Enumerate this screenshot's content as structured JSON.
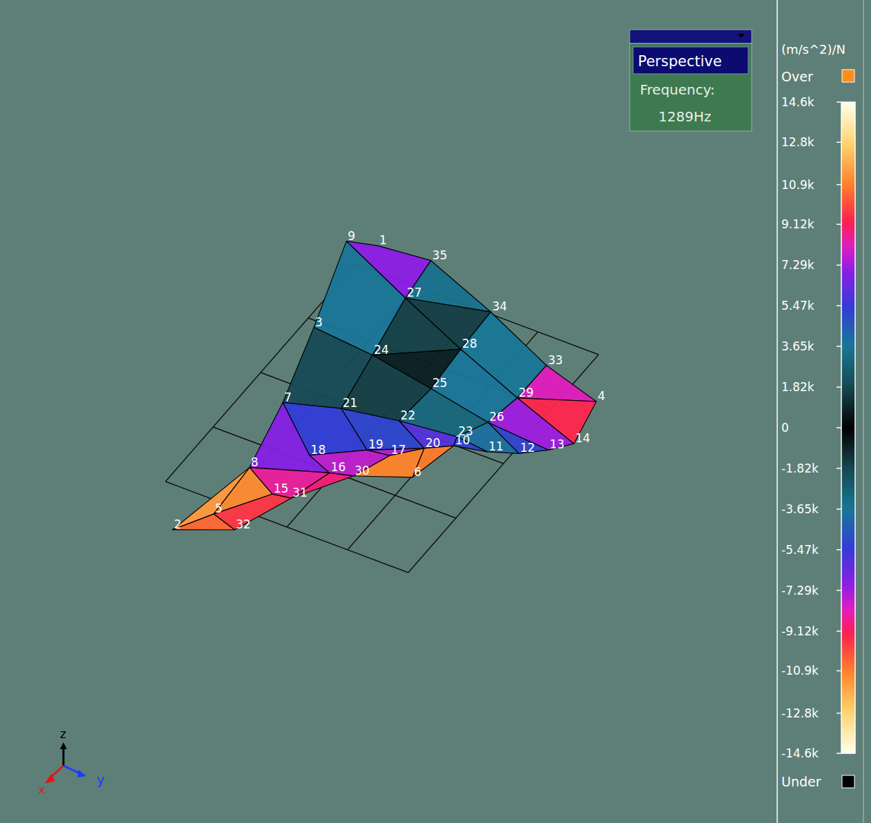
{
  "chart_data": {
    "type": "surface",
    "view_label": "Perspective",
    "frequency_label": "Frequency:",
    "frequency": "1289Hz",
    "unit": "(m/s^2)/N",
    "over_label": "Over",
    "under_label": "Under",
    "axis_labels": {
      "x": "x",
      "y": "y",
      "z": "z"
    },
    "grid": true,
    "tick_labels": false,
    "floor": {
      "x": [
        0,
        1,
        2,
        3,
        4
      ],
      "y": [
        0,
        1,
        2,
        3,
        4
      ]
    },
    "nodes": [
      {
        "label": "9",
        "x": -0.36,
        "y": 4.26,
        "value": -11500
      },
      {
        "label": "1",
        "x": 0.08,
        "y": 4.36,
        "value": -6000
      },
      {
        "label": "35",
        "x": 0.9,
        "y": 4.43,
        "value": -6500
      },
      {
        "label": "27",
        "x": 0.99,
        "y": 3.78,
        "value": -4000
      },
      {
        "label": "34",
        "x": 2.2,
        "y": 4.03,
        "value": 300
      },
      {
        "label": "3",
        "x": 0.17,
        "y": 2.9,
        "value": 500
      },
      {
        "label": "24",
        "x": 1.2,
        "y": 2.82,
        "value": 200
      },
      {
        "label": "28",
        "x": 2.23,
        "y": 3.36,
        "value": -1000
      },
      {
        "label": "33",
        "x": 3.47,
        "y": 3.58,
        "value": -6500
      },
      {
        "label": "25",
        "x": 2.29,
        "y": 2.66,
        "value": -1500
      },
      {
        "label": "29",
        "x": 3.46,
        "y": 2.98,
        "value": -7500
      },
      {
        "label": "4",
        "x": 4.48,
        "y": 3.34,
        "value": -10500
      },
      {
        "label": "7",
        "x": 0.6,
        "y": 1.7,
        "value": -5500
      },
      {
        "label": "21",
        "x": 1.39,
        "y": 1.92,
        "value": -3000
      },
      {
        "label": "22",
        "x": 2.24,
        "y": 2.05,
        "value": -2000
      },
      {
        "label": "26",
        "x": 3.36,
        "y": 2.49,
        "value": -5000
      },
      {
        "label": "23",
        "x": 3.13,
        "y": 2.13,
        "value": -3500
      },
      {
        "label": "14",
        "x": 4.66,
        "y": 2.64,
        "value": -10000
      },
      {
        "label": "13",
        "x": 4.41,
        "y": 2.42,
        "value": -6500
      },
      {
        "label": "12",
        "x": 4.08,
        "y": 2.22,
        "value": -4000
      },
      {
        "label": "11",
        "x": 3.67,
        "y": 2.08,
        "value": -3000
      },
      {
        "label": "10",
        "x": 3.19,
        "y": 1.99,
        "value": -9000
      },
      {
        "label": "20",
        "x": 2.85,
        "y": 1.8,
        "value": -9500
      },
      {
        "label": "18",
        "x": 1.5,
        "y": 1.11,
        "value": -7000
      },
      {
        "label": "19",
        "x": 2.16,
        "y": 1.48,
        "value": -6000
      },
      {
        "label": "17",
        "x": 2.5,
        "y": 1.52,
        "value": -7000
      },
      {
        "label": "16",
        "x": 1.94,
        "y": 0.97,
        "value": -5000
      },
      {
        "label": "30",
        "x": 2.27,
        "y": 1.05,
        "value": -13500
      },
      {
        "label": "6",
        "x": 3.02,
        "y": 1.34,
        "value": -14000
      },
      {
        "label": "8",
        "x": 0.89,
        "y": 0.63,
        "value": -10000
      },
      {
        "label": "15",
        "x": 1.46,
        "y": 0.38,
        "value": -11000
      },
      {
        "label": "31",
        "x": 1.74,
        "y": 0.42,
        "value": -8000
      },
      {
        "label": "2",
        "x": 0.61,
        "y": -0.63,
        "value": -12000
      },
      {
        "label": "5",
        "x": 0.95,
        "y": -0.2,
        "value": -12500
      },
      {
        "label": "32",
        "x": 1.38,
        "y": -0.31,
        "value": -7000
      }
    ],
    "faces": [
      [
        "9",
        "1",
        "35",
        "27"
      ],
      [
        "27",
        "35",
        "34"
      ],
      [
        "27",
        "34",
        "28"
      ],
      [
        "9",
        "27",
        "24",
        "3"
      ],
      [
        "24",
        "27",
        "28"
      ],
      [
        "28",
        "34",
        "33",
        "29"
      ],
      [
        "29",
        "33",
        "4"
      ],
      [
        "29",
        "4",
        "14"
      ],
      [
        "3",
        "24",
        "21",
        "7"
      ],
      [
        "24",
        "28",
        "25"
      ],
      [
        "24",
        "25",
        "22",
        "21"
      ],
      [
        "28",
        "29",
        "26",
        "25"
      ],
      [
        "29",
        "14",
        "13",
        "26"
      ],
      [
        "26",
        "13",
        "12"
      ],
      [
        "26",
        "12",
        "11",
        "23"
      ],
      [
        "25",
        "26",
        "23",
        "22"
      ],
      [
        "22",
        "23",
        "10",
        "20"
      ],
      [
        "23",
        "11",
        "10"
      ],
      [
        "7",
        "21",
        "19",
        "18"
      ],
      [
        "21",
        "22",
        "20",
        "19"
      ],
      [
        "19",
        "20",
        "17"
      ],
      [
        "7",
        "18",
        "16",
        "8"
      ],
      [
        "18",
        "19",
        "17",
        "30",
        "16"
      ],
      [
        "17",
        "20",
        "6",
        "30"
      ],
      [
        "20",
        "10",
        "6"
      ],
      [
        "8",
        "16",
        "31",
        "15"
      ],
      [
        "16",
        "30",
        "31"
      ],
      [
        "8",
        "15",
        "5"
      ],
      [
        "2",
        "8",
        "5"
      ],
      [
        "2",
        "5",
        "32"
      ],
      [
        "5",
        "15",
        "31",
        "32"
      ]
    ],
    "colorbar": {
      "range": [
        -14600,
        14600
      ],
      "ticks": [
        {
          "value": 14600,
          "label": "14.6k"
        },
        {
          "value": 12800,
          "label": "12.8k"
        },
        {
          "value": 10900,
          "label": "10.9k"
        },
        {
          "value": 9120,
          "label": "9.12k"
        },
        {
          "value": 7290,
          "label": "7.29k"
        },
        {
          "value": 5470,
          "label": "5.47k"
        },
        {
          "value": 3650,
          "label": "3.65k"
        },
        {
          "value": 1820,
          "label": "1.82k"
        },
        0,
        {
          "value": -1820,
          "label": "-1.82k"
        },
        {
          "value": -3650,
          "label": "-3.65k"
        },
        {
          "value": -5470,
          "label": "-5.47k"
        },
        {
          "value": -7290,
          "label": "-7.29k"
        },
        {
          "value": -9120,
          "label": "-9.12k"
        },
        {
          "value": -10900,
          "label": "-10.9k"
        },
        {
          "value": -12800,
          "label": "-12.8k"
        },
        {
          "value": -14600,
          "label": "-14.6k"
        }
      ]
    }
  }
}
